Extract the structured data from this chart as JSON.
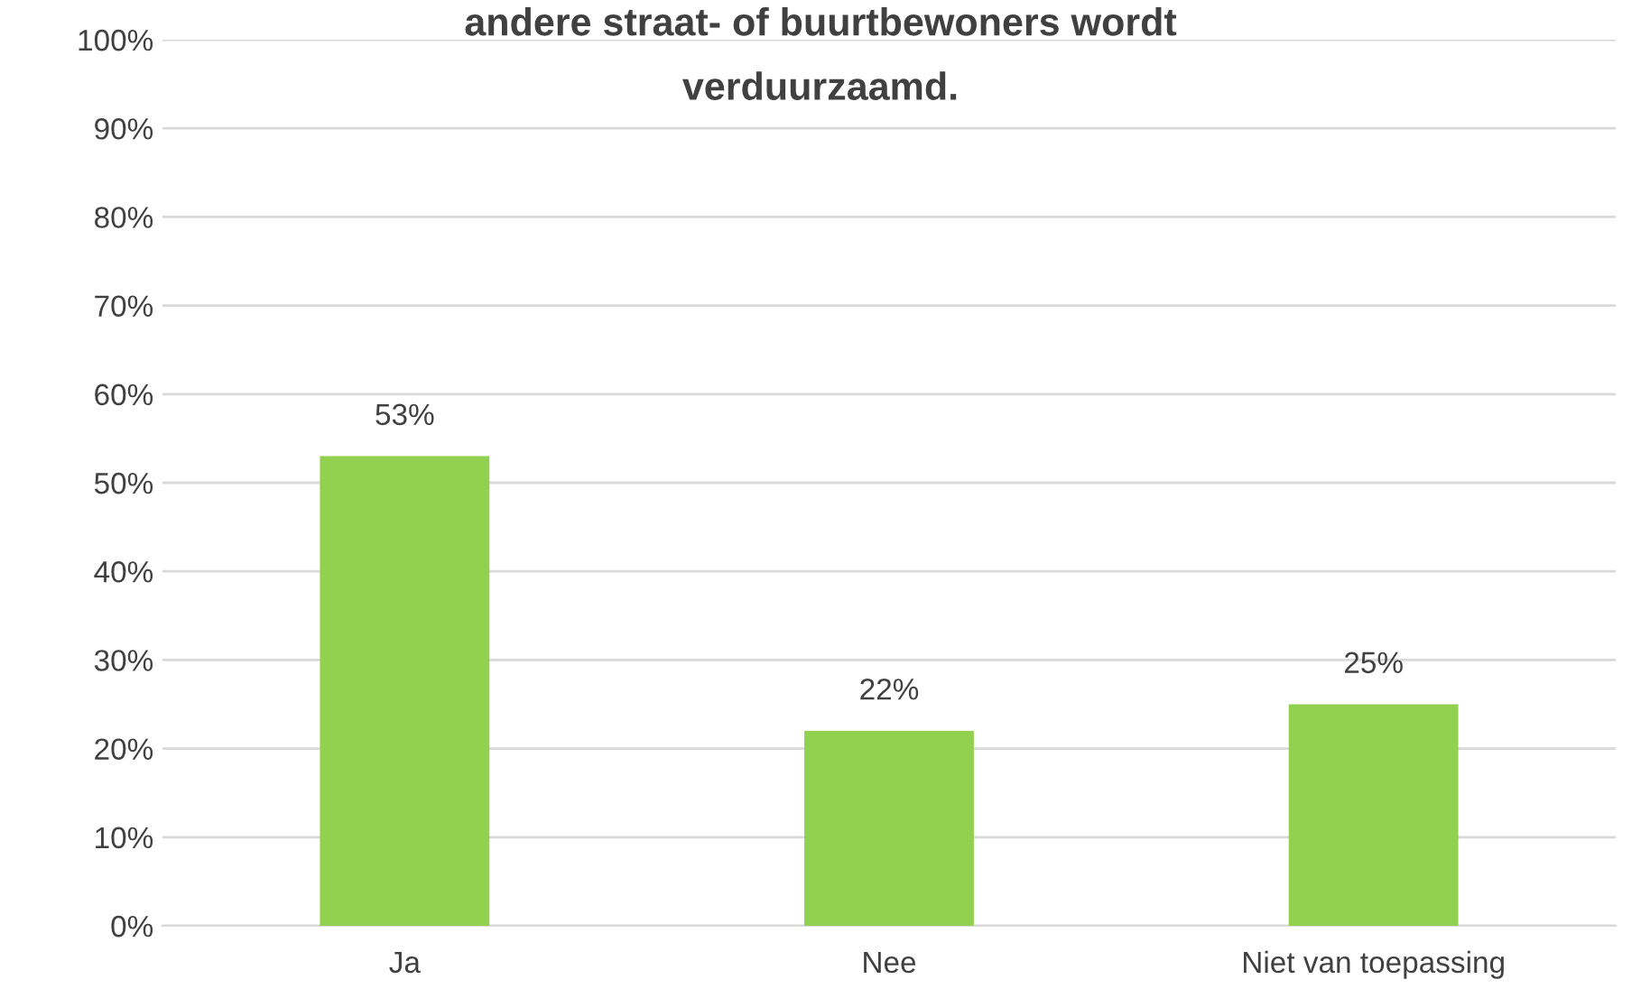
{
  "chart_data": {
    "type": "bar",
    "title": "andere straat- of buurtbewoners wordt\nverduurzaamd.",
    "categories": [
      "Ja",
      "Nee",
      "Niet van toepassing"
    ],
    "values": [
      53,
      22,
      25
    ],
    "color": "#92d050",
    "data_labels": true,
    "value_labels": [
      "53%",
      "22%",
      "25%"
    ],
    "ylim": [
      0,
      100
    ],
    "yticks": [
      {
        "value": 0,
        "label": "0%"
      },
      {
        "value": 10,
        "label": "10%"
      },
      {
        "value": 20,
        "label": "20%"
      },
      {
        "value": 30,
        "label": "30%"
      },
      {
        "value": 40,
        "label": "40%"
      },
      {
        "value": 50,
        "label": "50%"
      },
      {
        "value": 60,
        "label": "60%"
      },
      {
        "value": 70,
        "label": "70%"
      },
      {
        "value": 80,
        "label": "80%"
      },
      {
        "value": 90,
        "label": "90%"
      },
      {
        "value": 100,
        "label": "100%"
      }
    ],
    "grid": "y",
    "legend": false
  }
}
